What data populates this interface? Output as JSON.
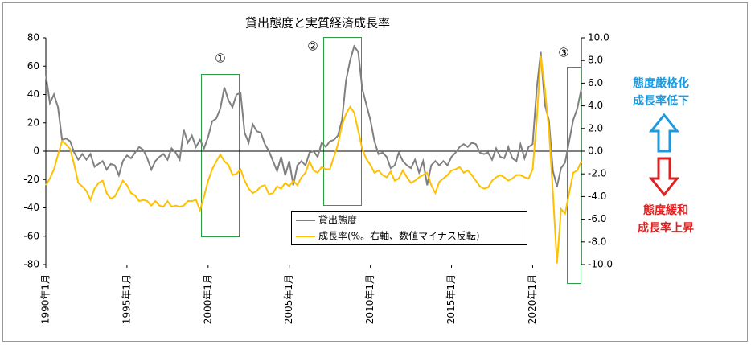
{
  "chart_data": {
    "type": "line",
    "title": "貸出態度と実質経済成長率",
    "x": [
      1990,
      1990.25,
      1990.5,
      1990.75,
      1991,
      1991.25,
      1991.5,
      1991.75,
      1992,
      1992.25,
      1992.5,
      1992.75,
      1993,
      1993.25,
      1993.5,
      1993.75,
      1994,
      1994.25,
      1994.5,
      1994.75,
      1995,
      1995.25,
      1995.5,
      1995.75,
      1996,
      1996.25,
      1996.5,
      1996.75,
      1997,
      1997.25,
      1997.5,
      1997.75,
      1998,
      1998.25,
      1998.5,
      1998.75,
      1999,
      1999.25,
      1999.5,
      1999.75,
      2000,
      2000.25,
      2000.5,
      2000.75,
      2001,
      2001.25,
      2001.5,
      2001.75,
      2002,
      2002.25,
      2002.5,
      2002.75,
      2003,
      2003.25,
      2003.5,
      2003.75,
      2004,
      2004.25,
      2004.5,
      2004.75,
      2005,
      2005.25,
      2005.5,
      2005.75,
      2006,
      2006.25,
      2006.5,
      2006.75,
      2007,
      2007.25,
      2007.5,
      2007.75,
      2008,
      2008.25,
      2008.5,
      2008.75,
      2009,
      2009.25,
      2009.5,
      2009.75,
      2010,
      2010.25,
      2010.5,
      2010.75,
      2011,
      2011.25,
      2011.5,
      2011.75,
      2012,
      2012.25,
      2012.5,
      2012.75,
      2013,
      2013.25,
      2013.5,
      2013.75,
      2014,
      2014.25,
      2014.5,
      2014.75,
      2015,
      2015.25,
      2015.5,
      2015.75,
      2016,
      2016.25,
      2016.5,
      2016.75,
      2017,
      2017.25,
      2017.5,
      2017.75,
      2018,
      2018.25,
      2018.5,
      2018.75,
      2019,
      2019.25,
      2019.5,
      2019.75,
      2020,
      2020.25,
      2020.5,
      2020.75,
      2021,
      2021.25,
      2021.5,
      2021.75,
      2022,
      2022.25,
      2022.5,
      2022.75,
      2023
    ],
    "series": [
      {
        "name": "貸出態度",
        "color": "#808080",
        "axis": "y",
        "values": [
          54,
          34,
          40,
          31,
          8,
          9,
          7,
          -1,
          -6,
          -2,
          -6,
          -2,
          -11,
          -9,
          -7,
          -13,
          -9,
          -10,
          -17,
          -7,
          -3,
          -5,
          -1,
          3,
          1,
          -5,
          -13,
          -7,
          -4,
          -2,
          -6,
          2,
          -1,
          -6,
          15,
          6,
          11,
          3,
          8,
          2,
          10,
          21,
          23,
          30,
          45,
          36,
          31,
          40,
          41,
          13,
          6,
          19,
          14,
          13,
          5,
          0,
          -7,
          -14,
          -4,
          -17,
          -7,
          -24,
          -10,
          -7,
          -10,
          -1,
          0,
          -4,
          6,
          3,
          7,
          8,
          11,
          22,
          50,
          64,
          74,
          70,
          44,
          33,
          22,
          7,
          -2,
          -1,
          -4,
          -12,
          -10,
          -1,
          -7,
          -10,
          -12,
          -6,
          -15,
          -7,
          -24,
          -10,
          -7,
          -10,
          -7,
          -10,
          -4,
          -1,
          3,
          5,
          3,
          6,
          5,
          -1,
          -2,
          -1,
          -6,
          2,
          -4,
          -5,
          3,
          -5,
          -7,
          5,
          -5,
          3,
          5,
          44,
          70,
          33,
          22,
          -14,
          -25,
          -12,
          -8,
          7,
          22,
          30,
          44
        ]
      },
      {
        "name": "成長率(%。右軸、数値マイナス反転)",
        "color": "#ffc000",
        "axis": "y2",
        "values": [
          -3.0,
          -2.4,
          -1.6,
          -0.3,
          0.9,
          0.6,
          0.2,
          -1.2,
          -2.8,
          -3.1,
          -3.5,
          -4.3,
          -3.3,
          -2.8,
          -2.6,
          -3.7,
          -4.2,
          -4.0,
          -3.3,
          -2.6,
          -3.0,
          -3.7,
          -3.9,
          -4.4,
          -4.3,
          -4.4,
          -4.8,
          -4.4,
          -4.8,
          -4.9,
          -4.4,
          -4.9,
          -4.8,
          -4.9,
          -4.8,
          -4.4,
          -4.4,
          -4.3,
          -5.2,
          -4.0,
          -2.6,
          -1.6,
          -0.9,
          -0.3,
          -0.9,
          -1.2,
          -2.1,
          -2.0,
          -1.6,
          -2.6,
          -3.3,
          -3.7,
          -3.5,
          -3.1,
          -3.0,
          -3.8,
          -3.7,
          -3.1,
          -3.3,
          -2.8,
          -3.1,
          -2.6,
          -3.0,
          -2.3,
          -1.9,
          -0.9,
          -1.7,
          -1.9,
          -1.4,
          -1.6,
          -1.6,
          -0.5,
          0.6,
          2.3,
          3.3,
          3.9,
          3.4,
          1.8,
          0.2,
          -0.7,
          -1.2,
          -1.9,
          -1.7,
          -2.1,
          -2.3,
          -1.8,
          -2.6,
          -2.4,
          -1.7,
          -2.3,
          -2.8,
          -2.6,
          -2.3,
          -2.1,
          -1.9,
          -3.0,
          -3.7,
          -2.7,
          -2.4,
          -2.1,
          -1.7,
          -1.6,
          -1.4,
          -1.9,
          -1.7,
          -2.1,
          -2.6,
          -3.1,
          -3.3,
          -3.2,
          -2.6,
          -2.3,
          -2.1,
          -2.3,
          -2.6,
          -2.4,
          -2.1,
          -2.1,
          -2.3,
          -2.4,
          -1.6,
          2.7,
          8.4,
          5.5,
          2.0,
          -3.7,
          -9.9,
          -5.1,
          -5.5,
          -3.7,
          -1.9,
          -1.7,
          -0.9
        ]
      }
    ],
    "xlim": [
      1990,
      2023
    ],
    "xticks": [
      {
        "value": 1990,
        "label": "1990年1月"
      },
      {
        "value": 1995,
        "label": "1995年1月"
      },
      {
        "value": 2000,
        "label": "2000年1月"
      },
      {
        "value": 2005,
        "label": "2005年1月"
      },
      {
        "value": 2010,
        "label": "2010年1月"
      },
      {
        "value": 2015,
        "label": "2015年1月"
      },
      {
        "value": 2020,
        "label": "2020年1月"
      }
    ],
    "ylim": [
      -80,
      80
    ],
    "yticks": [
      -80,
      -60,
      -40,
      -20,
      0,
      20,
      40,
      60,
      80
    ],
    "y2lim": [
      -10,
      10
    ],
    "y2ticks": [
      {
        "value": -10,
        "label": "-10.0"
      },
      {
        "value": -8,
        "label": "-8.0"
      },
      {
        "value": -6,
        "label": "-6.0"
      },
      {
        "value": -4,
        "label": "-4.0"
      },
      {
        "value": -2,
        "label": "-2.0"
      },
      {
        "value": 0,
        "label": "0.0"
      },
      {
        "value": 2,
        "label": "2.0"
      },
      {
        "value": 4,
        "label": "4.0"
      },
      {
        "value": 6,
        "label": "6.0"
      },
      {
        "value": 8,
        "label": "8.0"
      },
      {
        "value": 10,
        "label": "10.0"
      }
    ],
    "annotations": [
      "①",
      "②",
      "③"
    ],
    "tighten_notes": [
      "態度厳格化",
      "成長率低下"
    ],
    "ease_notes": [
      "態度緩和",
      "成長率上昇"
    ]
  }
}
